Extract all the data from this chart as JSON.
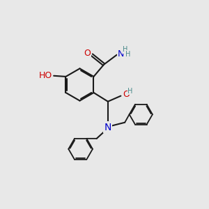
{
  "bg_color": "#e8e8e8",
  "bond_color": "#1a1a1a",
  "bond_width": 1.5,
  "atom_colors": {
    "O": "#cc0000",
    "N": "#0000cc",
    "H": "#4a8a8a",
    "C": "#1a1a1a"
  },
  "font_size": 8,
  "fig_size": [
    3.0,
    3.0
  ],
  "dpi": 100,
  "xlim": [
    0,
    10
  ],
  "ylim": [
    0,
    10
  ]
}
